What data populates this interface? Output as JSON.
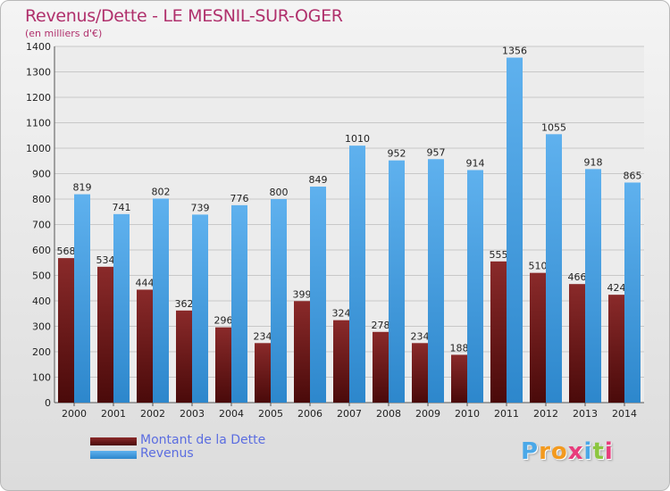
{
  "header": {
    "title": "Revenus/Dette - LE MESNIL-SUR-OGER",
    "subtitle": "(en milliers d'€)"
  },
  "colors": {
    "dette": "#7a1818",
    "revenus": "#4aa2e2",
    "title": "#b0306c",
    "legend_text": "#5b6de0"
  },
  "chart_data": {
    "type": "bar",
    "categories": [
      "2000",
      "2001",
      "2002",
      "2003",
      "2004",
      "2005",
      "2006",
      "2007",
      "2008",
      "2009",
      "2010",
      "2011",
      "2012",
      "2013",
      "2014"
    ],
    "series": [
      {
        "name": "Montant de la Dette",
        "values": [
          568,
          534,
          444,
          362,
          296,
          234,
          399,
          324,
          278,
          234,
          188,
          555,
          510,
          466,
          424
        ]
      },
      {
        "name": "Revenus",
        "values": [
          819,
          741,
          802,
          739,
          776,
          800,
          849,
          1010,
          952,
          957,
          914,
          1356,
          1055,
          918,
          865
        ]
      }
    ],
    "ylim": [
      0,
      1400
    ],
    "yticks": [
      0,
      100,
      200,
      300,
      400,
      500,
      600,
      700,
      800,
      900,
      1000,
      1100,
      1200,
      1300,
      1400
    ],
    "grid": true,
    "legend_position": "bottom-left"
  },
  "legend": {
    "dette_label": "Montant de la Dette",
    "revenus_label": "Revenus"
  },
  "logo": {
    "letters": [
      "P",
      "r",
      "o",
      "x",
      "i",
      "t",
      "i"
    ],
    "letter_colors": [
      "#4aa8e8",
      "#f39a1f",
      "#f39a1f",
      "#e83c7c",
      "#4aa8e8",
      "#8cc63f",
      "#e83c7c"
    ]
  }
}
